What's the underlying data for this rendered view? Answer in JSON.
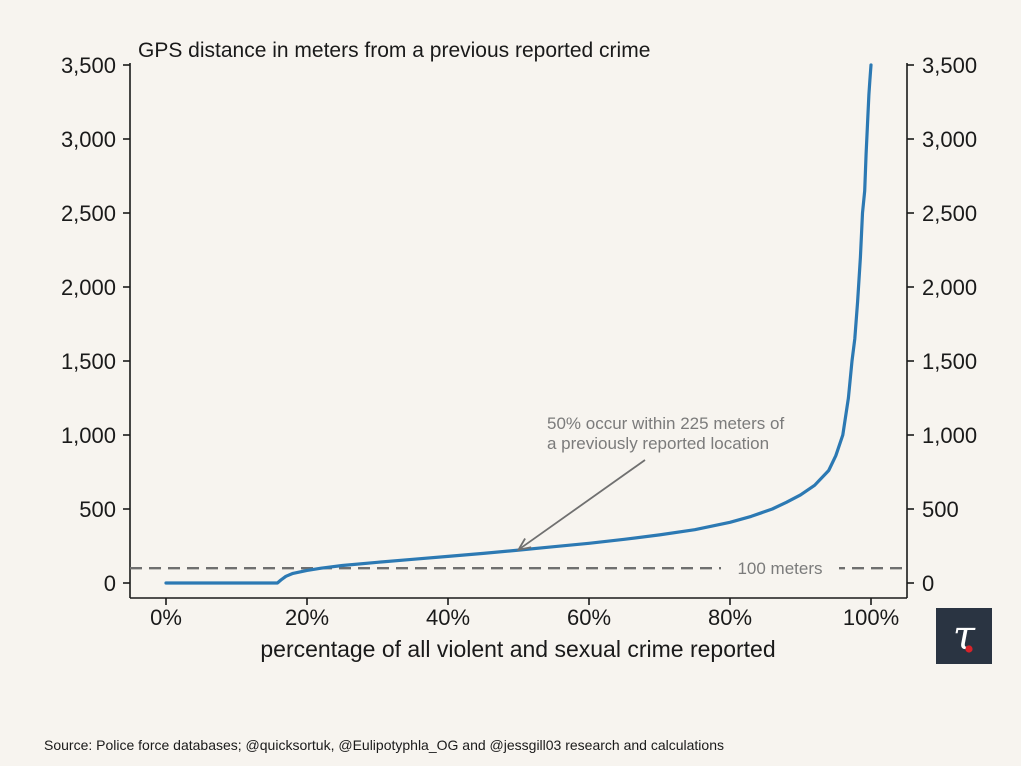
{
  "chart_data": {
    "type": "line",
    "title": "GPS distance in meters from a previous reported crime",
    "xlabel": "percentage of all violent and sexual crime reported",
    "ylabel": "",
    "xlim": [
      0,
      100
    ],
    "ylim": [
      0,
      3500
    ],
    "x_ticks": [
      0,
      20,
      40,
      60,
      80,
      100
    ],
    "x_tick_labels": [
      "0%",
      "20%",
      "40%",
      "60%",
      "80%",
      "100%"
    ],
    "y_ticks": [
      0,
      500,
      1000,
      1500,
      2000,
      2500,
      3000,
      3500
    ],
    "y_tick_labels": [
      "0",
      "500",
      "1,000",
      "1,500",
      "2,000",
      "2,500",
      "3,000",
      "3,500"
    ],
    "grid": false,
    "series": [
      {
        "name": "GPS distance",
        "color": "#2c79b3",
        "x": [
          0,
          15.8,
          16.3,
          17,
          18,
          20,
          22,
          25,
          30,
          35,
          40,
          45,
          50,
          55,
          60,
          65,
          70,
          75,
          80,
          83,
          86,
          88,
          90,
          92,
          94,
          95,
          96,
          96.8,
          97.3,
          97.7,
          98.1,
          98.5,
          98.8,
          99.1,
          99.3,
          99.5,
          99.7,
          99.85,
          100
        ],
        "values": [
          0,
          0,
          20,
          45,
          65,
          85,
          100,
          118,
          140,
          160,
          180,
          200,
          222,
          245,
          268,
          295,
          325,
          360,
          410,
          450,
          500,
          545,
          595,
          660,
          760,
          860,
          1000,
          1250,
          1500,
          1650,
          1900,
          2200,
          2500,
          2650,
          2900,
          3100,
          3300,
          3400,
          3500
        ]
      }
    ],
    "reference_line": {
      "value": 100,
      "label": "100 meters",
      "color": "#6f6f6f"
    },
    "annotation": {
      "line1": "50% occur within 225 meters of",
      "line2": "a previously reported location",
      "x": 50,
      "y": 225,
      "color": "#7b7b7b"
    }
  },
  "source": "Source: Police force databases; @quicksortuk, @Eulipotyphla_OG and @jessgill03 research and calculations",
  "logo": {
    "glyph": "τ",
    "background": "#2a3442",
    "foreground": "#ffffff",
    "accent": "#d8232a"
  }
}
